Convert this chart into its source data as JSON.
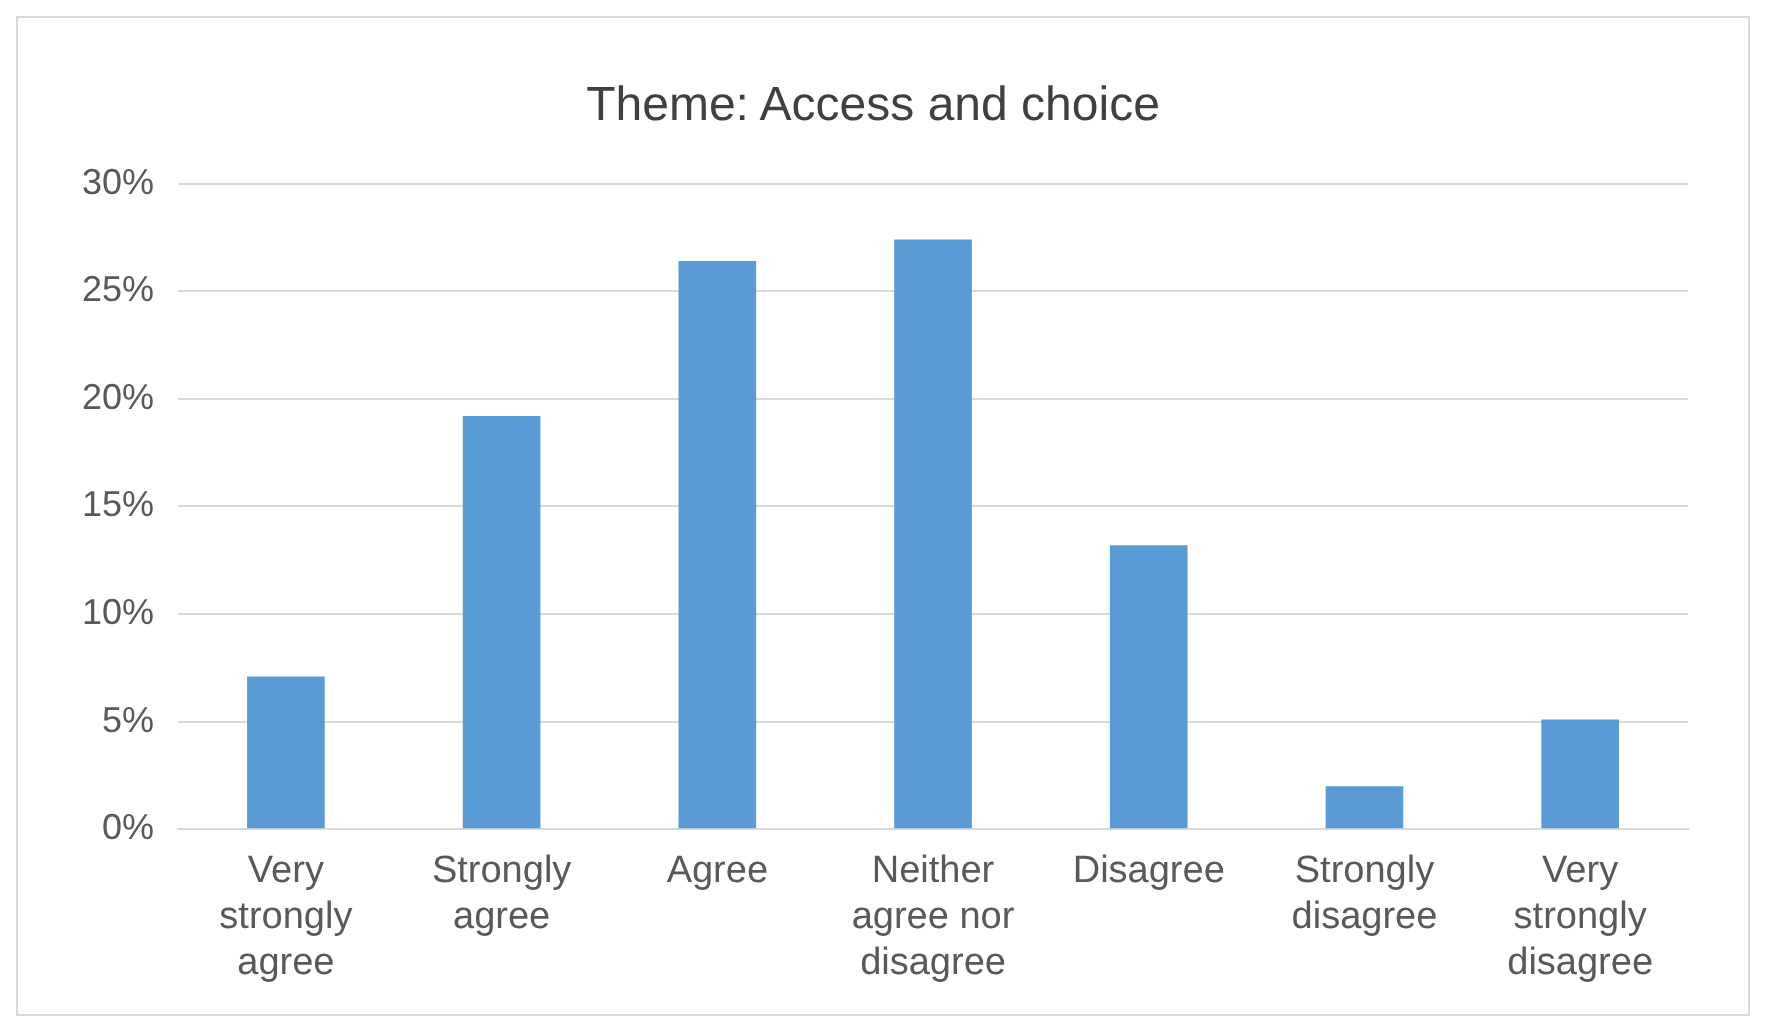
{
  "chart_data": {
    "type": "bar",
    "title": "Theme: Access and choice",
    "categories": [
      "Very strongly agree",
      "Strongly agree",
      "Agree",
      "Neither agree nor disagree",
      "Disagree",
      "Strongly disagree",
      "Very strongly disagree"
    ],
    "values": [
      7.1,
      19.2,
      26.4,
      27.4,
      13.2,
      2.0,
      5.1
    ],
    "color": "#5b9bd5",
    "ylim": [
      0,
      30
    ],
    "yticks": [
      {
        "value": 0,
        "label": "0%"
      },
      {
        "value": 5,
        "label": "5%"
      },
      {
        "value": 10,
        "label": "10%"
      },
      {
        "value": 15,
        "label": "15%"
      },
      {
        "value": 20,
        "label": "20%"
      },
      {
        "value": 25,
        "label": "25%"
      },
      {
        "value": 30,
        "label": "30%"
      }
    ],
    "grid": "y",
    "legend": false
  }
}
